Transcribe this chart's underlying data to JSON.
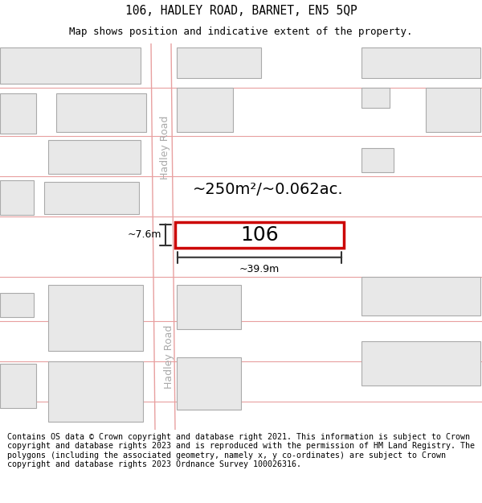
{
  "title_line1": "106, HADLEY ROAD, BARNET, EN5 5QP",
  "title_line2": "Map shows position and indicative extent of the property.",
  "footer_text": "Contains OS data © Crown copyright and database right 2021. This information is subject to Crown copyright and database rights 2023 and is reproduced with the permission of HM Land Registry. The polygons (including the associated geometry, namely x, y co-ordinates) are subject to Crown copyright and database rights 2023 Ordnance Survey 100026316.",
  "background_color": "#ffffff",
  "map_bg_color": "#ffffff",
  "road_color": "#ffffff",
  "road_line_color": "#e8a0a0",
  "building_fill": "#e8e8e8",
  "building_edge": "#aaaaaa",
  "highlight_rect_color": "#cc0000",
  "highlight_rect_fill": "#ffffff",
  "dim_line_color": "#333333",
  "road_label": "Hadley Road",
  "property_label": "106",
  "area_label": "~250m²/~0.062ac.",
  "width_label": "~39.9m",
  "height_label": "~7.6m",
  "title_fontsize": 10.5,
  "subtitle_fontsize": 9,
  "footer_fontsize": 7.2
}
